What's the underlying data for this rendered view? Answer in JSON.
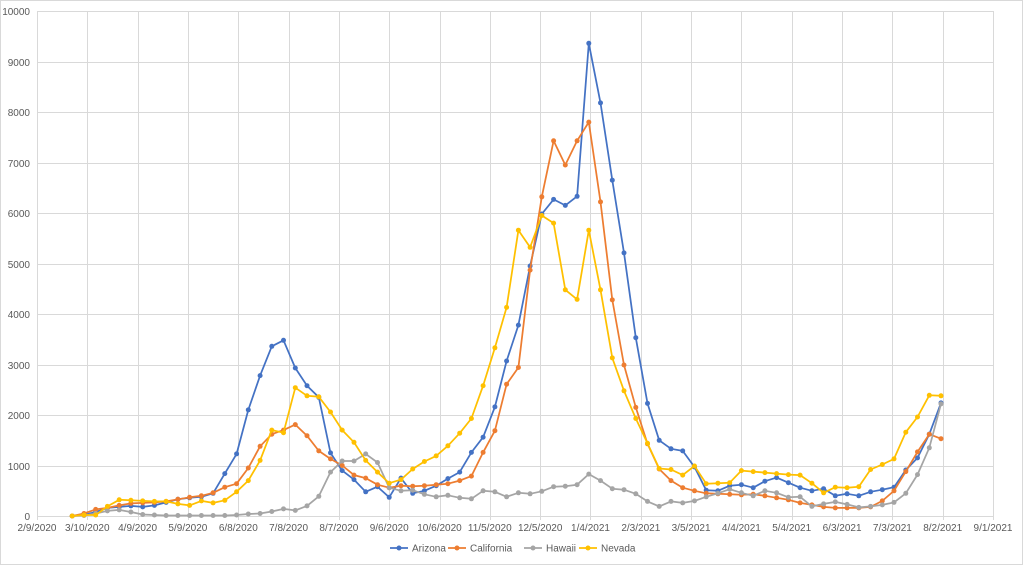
{
  "chart_data": {
    "type": "line",
    "xlim": [
      "2/9/2020",
      "9/1/2021"
    ],
    "ylim": [
      0,
      10000
    ],
    "grid": true,
    "legend": "bottom",
    "y_ticks": [
      0,
      1000,
      2000,
      3000,
      4000,
      5000,
      6000,
      7000,
      8000,
      9000,
      10000
    ],
    "x_tick_labels": [
      "2/9/2020",
      "3/10/2020",
      "4/9/2020",
      "5/9/2020",
      "6/8/2020",
      "7/8/2020",
      "8/7/2020",
      "9/6/2020",
      "10/6/2020",
      "11/5/2020",
      "12/5/2020",
      "1/4/2021",
      "2/3/2021",
      "3/5/2021",
      "4/4/2021",
      "5/4/2021",
      "6/3/2021",
      "7/3/2021",
      "8/2/2021",
      "9/1/2021"
    ],
    "x": [
      "3/1/2020",
      "3/8/2020",
      "3/15/2020",
      "3/22/2020",
      "3/29/2020",
      "4/5/2020",
      "4/12/2020",
      "4/19/2020",
      "4/26/2020",
      "5/3/2020",
      "5/10/2020",
      "5/17/2020",
      "5/24/2020",
      "5/31/2020",
      "6/7/2020",
      "6/14/2020",
      "6/21/2020",
      "6/28/2020",
      "7/5/2020",
      "7/12/2020",
      "7/19/2020",
      "7/26/2020",
      "8/2/2020",
      "8/9/2020",
      "8/16/2020",
      "8/23/2020",
      "8/30/2020",
      "9/6/2020",
      "9/13/2020",
      "9/20/2020",
      "9/27/2020",
      "10/4/2020",
      "10/11/2020",
      "10/18/2020",
      "10/25/2020",
      "11/1/2020",
      "11/8/2020",
      "11/15/2020",
      "11/22/2020",
      "11/29/2020",
      "12/6/2020",
      "12/13/2020",
      "12/20/2020",
      "12/27/2020",
      "1/3/2021",
      "1/10/2021",
      "1/17/2021",
      "1/24/2021",
      "1/31/2021",
      "2/7/2021",
      "2/14/2021",
      "2/21/2021",
      "2/28/2021",
      "3/7/2021",
      "3/14/2021",
      "3/21/2021",
      "3/28/2021",
      "4/4/2021",
      "4/11/2021",
      "4/18/2021",
      "4/25/2021",
      "5/2/2021",
      "5/9/2021",
      "5/16/2021",
      "5/23/2021",
      "5/30/2021",
      "6/6/2021",
      "6/13/2021",
      "6/20/2021",
      "6/27/2021",
      "7/4/2021",
      "7/11/2021",
      "7/18/2021",
      "7/25/2021",
      "8/1/2021"
    ],
    "series": [
      {
        "name": "Arizona",
        "color": "#4472C4",
        "values": [
          0,
          20,
          80,
          160,
          180,
          200,
          180,
          210,
          270,
          330,
          360,
          380,
          450,
          840,
          1230,
          2100,
          2780,
          3360,
          3480,
          2930,
          2580,
          2350,
          1250,
          900,
          720,
          480,
          580,
          370,
          750,
          450,
          500,
          600,
          740,
          870,
          1260,
          1560,
          2160,
          3070,
          3780,
          4950,
          5980,
          6270,
          6150,
          6330,
          9360,
          8180,
          6650,
          5210,
          3530,
          2230,
          1500,
          1330,
          1290,
          970,
          510,
          500,
          600,
          620,
          560,
          690,
          760,
          660,
          560,
          500,
          540,
          400,
          440,
          400,
          480,
          520,
          570,
          910,
          1150,
          1620,
          2240
        ]
      },
      {
        "name": "California",
        "color": "#ED7D31",
        "values": [
          0,
          50,
          130,
          160,
          210,
          250,
          260,
          270,
          290,
          330,
          370,
          400,
          460,
          570,
          640,
          950,
          1380,
          1620,
          1700,
          1810,
          1590,
          1290,
          1130,
          1000,
          810,
          750,
          620,
          560,
          600,
          590,
          600,
          620,
          640,
          700,
          790,
          1260,
          1690,
          2610,
          2940,
          4870,
          6320,
          7430,
          6950,
          7430,
          7800,
          6220,
          4280,
          2990,
          2150,
          1430,
          930,
          700,
          560,
          500,
          450,
          440,
          430,
          420,
          430,
          400,
          360,
          320,
          260,
          220,
          180,
          160,
          160,
          160,
          180,
          300,
          500,
          880,
          1270,
          1620,
          1530
        ]
      },
      {
        "name": "Hawaii",
        "color": "#A5A5A5",
        "values": [
          0,
          10,
          50,
          100,
          120,
          80,
          30,
          20,
          10,
          10,
          10,
          10,
          10,
          10,
          20,
          40,
          50,
          90,
          140,
          110,
          200,
          390,
          870,
          1090,
          1090,
          1230,
          1060,
          560,
          500,
          510,
          430,
          380,
          410,
          360,
          340,
          500,
          480,
          380,
          460,
          440,
          490,
          580,
          590,
          620,
          830,
          700,
          540,
          520,
          440,
          290,
          190,
          290,
          260,
          300,
          380,
          450,
          530,
          460,
          400,
          500,
          460,
          370,
          380,
          190,
          240,
          280,
          230,
          170,
          190,
          220,
          270,
          450,
          820,
          1350,
          2220
        ]
      },
      {
        "name": "Nevada",
        "color": "#FFC000",
        "values": [
          0,
          20,
          20,
          190,
          320,
          310,
          300,
          290,
          290,
          240,
          210,
          300,
          260,
          310,
          480,
          700,
          1100,
          1700,
          1650,
          2540,
          2380,
          2360,
          2060,
          1700,
          1460,
          1100,
          870,
          650,
          720,
          930,
          1080,
          1190,
          1390,
          1640,
          1930,
          2580,
          3330,
          4130,
          5660,
          5320,
          5950,
          5800,
          4480,
          4290,
          5660,
          4480,
          3130,
          2480,
          1930,
          1440,
          940,
          920,
          810,
          990,
          640,
          650,
          660,
          900,
          880,
          860,
          840,
          820,
          810,
          650,
          460,
          570,
          560,
          580,
          920,
          1020,
          1130,
          1660,
          1960,
          2390,
          2380
        ]
      }
    ]
  }
}
